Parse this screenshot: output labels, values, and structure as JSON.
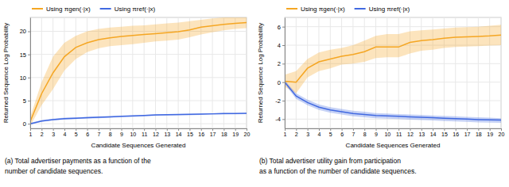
{
  "chart_data": [
    {
      "type": "line",
      "xlabel": "Candidate Sequences Generated",
      "ylabel": "Returned Sequence Log Probability",
      "x": [
        1,
        2,
        3,
        4,
        5,
        6,
        7,
        8,
        9,
        10,
        11,
        12,
        13,
        14,
        15,
        16,
        17,
        18,
        19,
        20
      ],
      "xlim": [
        1,
        20
      ],
      "xticks": [
        1,
        2,
        3,
        4,
        5,
        6,
        7,
        8,
        9,
        10,
        11,
        12,
        13,
        14,
        15,
        16,
        17,
        18,
        19,
        20
      ],
      "ylim": [
        -1,
        23
      ],
      "yticks": [
        0,
        5,
        10,
        15,
        20
      ],
      "grid": true,
      "legend": "upper left",
      "series": [
        {
          "name": "Using πgen(·|x)",
          "color": "#f5a623",
          "values": [
            0.5,
            6.5,
            11.0,
            14.5,
            16.5,
            17.5,
            18.2,
            18.6,
            18.9,
            19.1,
            19.3,
            19.5,
            19.7,
            19.9,
            20.3,
            20.9,
            21.2,
            21.5,
            21.7,
            21.9
          ],
          "upper": [
            1.5,
            9.0,
            14.5,
            17.5,
            19.0,
            20.0,
            20.5,
            20.8,
            21.0,
            21.2,
            21.3,
            21.5,
            21.7,
            21.9,
            22.2,
            22.5,
            22.8,
            23.0,
            23.2,
            23.4
          ],
          "lower": [
            -0.5,
            4.0,
            7.5,
            11.5,
            14.0,
            15.5,
            16.3,
            16.8,
            17.0,
            17.2,
            17.5,
            17.8,
            18.0,
            18.2,
            18.7,
            19.3,
            19.8,
            20.2,
            20.5,
            20.7
          ]
        },
        {
          "name": "Using πref(·|x)",
          "color": "#4169e1",
          "values": [
            0.0,
            0.6,
            0.9,
            1.1,
            1.2,
            1.3,
            1.4,
            1.5,
            1.6,
            1.7,
            1.8,
            1.9,
            1.95,
            2.0,
            2.05,
            2.1,
            2.15,
            2.2,
            2.22,
            2.25
          ],
          "upper": [
            0.2,
            0.8,
            1.1,
            1.3,
            1.4,
            1.5,
            1.6,
            1.65,
            1.7,
            1.8,
            1.9,
            2.0,
            2.05,
            2.1,
            2.15,
            2.2,
            2.25,
            2.3,
            2.32,
            2.35
          ],
          "lower": [
            -0.2,
            0.4,
            0.7,
            0.9,
            1.0,
            1.1,
            1.2,
            1.3,
            1.4,
            1.5,
            1.6,
            1.7,
            1.75,
            1.8,
            1.85,
            1.9,
            1.95,
            2.0,
            2.05,
            2.1
          ]
        }
      ],
      "annotations": [
        "(a) Total advertiser payments as a function of the",
        "number of candidate sequences."
      ]
    },
    {
      "type": "line",
      "xlabel": "Candidate Sequences Generated",
      "ylabel": "Returned Sequence Log Probability",
      "x": [
        1,
        2,
        3,
        4,
        5,
        6,
        7,
        8,
        9,
        10,
        11,
        12,
        13,
        14,
        15,
        16,
        17,
        18,
        19,
        20
      ],
      "xlim": [
        1,
        20
      ],
      "xticks": [
        1,
        2,
        3,
        4,
        5,
        6,
        7,
        8,
        9,
        10,
        11,
        12,
        13,
        14,
        15,
        16,
        17,
        18,
        19,
        20
      ],
      "ylim": [
        -5.0,
        7.0
      ],
      "yticks": [
        -4,
        -2,
        0,
        2,
        4,
        6
      ],
      "grid": true,
      "legend": "upper left",
      "series": [
        {
          "name": "Using πgen(·|x)",
          "color": "#f5a623",
          "values": [
            0.1,
            0.0,
            1.5,
            2.2,
            2.5,
            2.8,
            3.0,
            3.3,
            3.8,
            3.8,
            3.8,
            4.3,
            4.5,
            4.6,
            4.75,
            4.85,
            4.9,
            4.95,
            5.0,
            5.1
          ],
          "upper": [
            0.8,
            1.2,
            2.5,
            3.2,
            3.5,
            3.7,
            4.0,
            4.5,
            5.0,
            5.2,
            5.2,
            5.5,
            5.6,
            5.7,
            5.8,
            5.9,
            5.95,
            6.0,
            6.1,
            6.2
          ],
          "lower": [
            -0.5,
            -1.2,
            0.5,
            1.2,
            1.5,
            1.9,
            2.0,
            2.2,
            2.6,
            2.7,
            2.7,
            3.1,
            3.4,
            3.5,
            3.7,
            3.8,
            3.85,
            3.9,
            3.95,
            4.0
          ]
        },
        {
          "name": "Using πref(·|x)",
          "color": "#4169e1",
          "values": [
            0.0,
            -1.5,
            -2.2,
            -2.7,
            -3.0,
            -3.2,
            -3.4,
            -3.5,
            -3.6,
            -3.65,
            -3.7,
            -3.75,
            -3.8,
            -3.85,
            -3.9,
            -3.95,
            -4.0,
            -4.05,
            -4.08,
            -4.1
          ],
          "upper": [
            0.2,
            -1.2,
            -1.9,
            -2.4,
            -2.7,
            -2.9,
            -3.1,
            -3.2,
            -3.35,
            -3.4,
            -3.45,
            -3.5,
            -3.55,
            -3.6,
            -3.65,
            -3.7,
            -3.75,
            -3.8,
            -3.85,
            -3.9
          ],
          "lower": [
            -0.2,
            -1.8,
            -2.5,
            -3.0,
            -3.3,
            -3.5,
            -3.7,
            -3.8,
            -3.9,
            -3.95,
            -4.0,
            -4.05,
            -4.1,
            -4.15,
            -4.2,
            -4.25,
            -4.3,
            -4.35,
            -4.38,
            -4.4
          ]
        }
      ],
      "annotations": [
        "(b) Total advertiser utility gain from participation",
        "as a function of the number of candidate sequences."
      ]
    }
  ]
}
